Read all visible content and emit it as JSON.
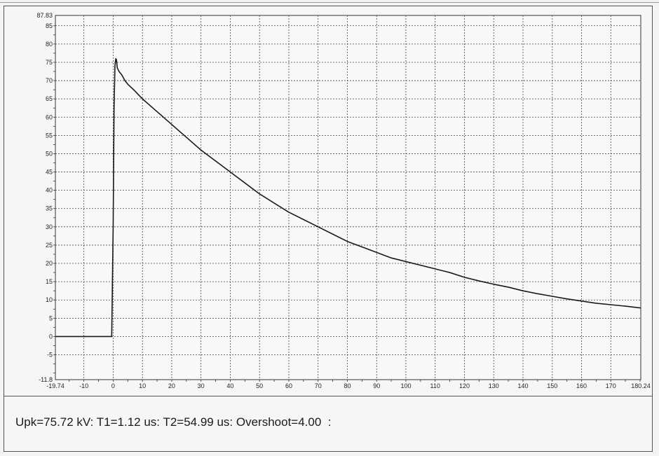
{
  "chart_data": {
    "type": "line",
    "title": "",
    "xlabel": "",
    "ylabel": "",
    "xlim": [
      -19.74,
      180.24
    ],
    "ylim": [
      -11.8,
      87.83
    ],
    "grid": true,
    "x_tick_labels": [
      "-19.74",
      "-10",
      "0",
      "10",
      "20",
      "30",
      "40",
      "50",
      "60",
      "70",
      "80",
      "90",
      "100",
      "110",
      "120",
      "130",
      "140",
      "150",
      "160",
      "170",
      "180.24"
    ],
    "x_ticks": [
      -19.74,
      -10,
      0,
      10,
      20,
      30,
      40,
      50,
      60,
      70,
      80,
      90,
      100,
      110,
      120,
      130,
      140,
      150,
      160,
      170,
      180.24
    ],
    "y_tick_labels": [
      "-11.8",
      "-5",
      "0",
      "5",
      "10",
      "15",
      "20",
      "25",
      "30",
      "35",
      "40",
      "45",
      "50",
      "55",
      "60",
      "65",
      "70",
      "75",
      "80",
      "85",
      "87.83"
    ],
    "y_ticks": [
      -11.8,
      -5,
      0,
      5,
      10,
      15,
      20,
      25,
      30,
      35,
      40,
      45,
      50,
      55,
      60,
      65,
      70,
      75,
      80,
      85,
      87.83
    ],
    "series": [
      {
        "x": [
          -19.74,
          -15,
          -10,
          -5,
          -0.5,
          0,
          0.3,
          0.6,
          0.9,
          1.12,
          1.4,
          2,
          3,
          4,
          5,
          7,
          10,
          15,
          20,
          25,
          30,
          35,
          40,
          45,
          50,
          55,
          60,
          65,
          70,
          75,
          80,
          85,
          90,
          95,
          100,
          105,
          110,
          115,
          120,
          125,
          130,
          135,
          140,
          145,
          150,
          155,
          160,
          165,
          170,
          175,
          180.24
        ],
        "y": [
          0,
          0,
          0,
          0,
          0,
          30,
          62,
          74,
          76,
          75.7,
          73.5,
          72.5,
          71.5,
          70,
          69,
          67.5,
          65,
          61.5,
          58,
          54.5,
          51,
          48,
          45,
          42,
          39,
          36.5,
          34,
          32,
          30,
          28,
          26,
          24.5,
          23,
          21.5,
          20.5,
          19.5,
          18.5,
          17.5,
          16.2,
          15.2,
          14.3,
          13.5,
          12.5,
          11.7,
          11,
          10.3,
          9.7,
          9.1,
          8.7,
          8.3,
          7.8
        ],
        "color": "#1a1a1a"
      }
    ]
  },
  "readout": "Upk=75.72 kV: T1=1.12 us: T2=54.99 us: Overshoot=4.00  :"
}
